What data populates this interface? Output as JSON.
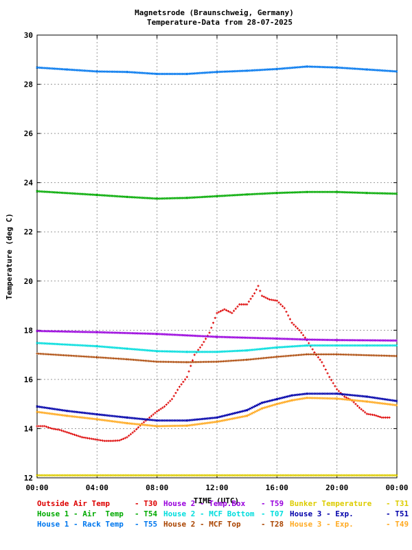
{
  "chart_data": {
    "type": "scatter",
    "title": "Magnetsrode (Braunschweig, Germany)",
    "subtitle": "Temperature-Data from 28-07-2025",
    "xlabel": "TIME (UTC)",
    "ylabel": "Temperature (deg C)",
    "xlim": [
      0,
      24
    ],
    "ylim": [
      12,
      30
    ],
    "grid": true,
    "x_ticks": [
      "00:00",
      "04:00",
      "08:00",
      "12:00",
      "16:00",
      "20:00",
      "00:00"
    ],
    "y_ticks": [
      "12",
      "14",
      "16",
      "18",
      "20",
      "22",
      "24",
      "26",
      "28",
      "30"
    ],
    "series": [
      {
        "name": "Outside Air Temp",
        "sensor": "T30",
        "color": "#dd0000",
        "marker": "plus",
        "points": [
          [
            0.0,
            14.1
          ],
          [
            0.5,
            14.1
          ],
          [
            1.0,
            14.0
          ],
          [
            1.5,
            13.95
          ],
          [
            2.0,
            13.85
          ],
          [
            2.5,
            13.75
          ],
          [
            3.0,
            13.65
          ],
          [
            3.5,
            13.6
          ],
          [
            4.0,
            13.55
          ],
          [
            4.5,
            13.5
          ],
          [
            5.0,
            13.5
          ],
          [
            5.5,
            13.52
          ],
          [
            6.0,
            13.65
          ],
          [
            6.5,
            13.9
          ],
          [
            7.0,
            14.2
          ],
          [
            7.5,
            14.45
          ],
          [
            8.0,
            14.7
          ],
          [
            8.5,
            14.9
          ],
          [
            9.0,
            15.2
          ],
          [
            9.5,
            15.7
          ],
          [
            10.0,
            16.1
          ],
          [
            10.5,
            17.0
          ],
          [
            11.0,
            17.4
          ],
          [
            11.5,
            17.9
          ],
          [
            12.0,
            18.7
          ],
          [
            12.5,
            18.85
          ],
          [
            13.0,
            18.7
          ],
          [
            13.5,
            19.05
          ],
          [
            14.0,
            19.05
          ],
          [
            14.5,
            19.5
          ],
          [
            14.75,
            19.8
          ],
          [
            15.0,
            19.4
          ],
          [
            15.5,
            19.25
          ],
          [
            16.0,
            19.2
          ],
          [
            16.5,
            18.9
          ],
          [
            17.0,
            18.3
          ],
          [
            17.5,
            18.0
          ],
          [
            18.0,
            17.6
          ],
          [
            18.5,
            17.1
          ],
          [
            19.0,
            16.7
          ],
          [
            19.5,
            16.1
          ],
          [
            20.0,
            15.6
          ],
          [
            20.5,
            15.3
          ],
          [
            21.0,
            15.15
          ],
          [
            21.5,
            14.85
          ],
          [
            22.0,
            14.6
          ],
          [
            22.5,
            14.55
          ],
          [
            23.0,
            14.45
          ],
          [
            23.5,
            14.45
          ]
        ]
      },
      {
        "name": "House 2 - Temp.Box",
        "sensor": "T59",
        "color": "#9900dd",
        "marker": "cross",
        "points": [
          [
            0,
            17.97
          ],
          [
            4,
            17.92
          ],
          [
            8,
            17.85
          ],
          [
            12,
            17.73
          ],
          [
            16,
            17.66
          ],
          [
            18,
            17.62
          ],
          [
            20,
            17.6
          ],
          [
            24,
            17.58
          ]
        ]
      },
      {
        "name": "Bunker Temperature",
        "sensor": "T31",
        "color": "#ddcc00",
        "marker": "cross",
        "points": [
          [
            0,
            12.1
          ],
          [
            12,
            12.1
          ],
          [
            24,
            12.1
          ]
        ]
      },
      {
        "name": "House 1 - Air  Temp",
        "sensor": "T54",
        "color": "#00aa00",
        "marker": "cross",
        "points": [
          [
            0,
            23.65
          ],
          [
            4,
            23.5
          ],
          [
            6,
            23.42
          ],
          [
            8,
            23.35
          ],
          [
            10,
            23.38
          ],
          [
            12,
            23.45
          ],
          [
            14,
            23.52
          ],
          [
            16,
            23.58
          ],
          [
            18,
            23.62
          ],
          [
            20,
            23.62
          ],
          [
            22,
            23.58
          ],
          [
            24,
            23.55
          ]
        ]
      },
      {
        "name": "House 2 - MCF Bottom",
        "sensor": "T07",
        "color": "#00dddd",
        "marker": "cross",
        "points": [
          [
            0,
            17.48
          ],
          [
            4,
            17.35
          ],
          [
            6,
            17.25
          ],
          [
            8,
            17.15
          ],
          [
            10,
            17.12
          ],
          [
            12,
            17.12
          ],
          [
            14,
            17.18
          ],
          [
            16,
            17.3
          ],
          [
            18,
            17.38
          ],
          [
            20,
            17.38
          ],
          [
            22,
            17.38
          ],
          [
            24,
            17.38
          ]
        ]
      },
      {
        "name": "House 3 - Exp.",
        "sensor": "T51",
        "color": "#0000aa",
        "marker": "cross",
        "points": [
          [
            0,
            14.9
          ],
          [
            2,
            14.72
          ],
          [
            4,
            14.58
          ],
          [
            6,
            14.45
          ],
          [
            8,
            14.33
          ],
          [
            10,
            14.33
          ],
          [
            12,
            14.45
          ],
          [
            14,
            14.75
          ],
          [
            15,
            15.05
          ],
          [
            16,
            15.2
          ],
          [
            17,
            15.35
          ],
          [
            18,
            15.42
          ],
          [
            20,
            15.42
          ],
          [
            22,
            15.3
          ],
          [
            24,
            15.12
          ]
        ]
      },
      {
        "name": "House 1 - Rack Temp",
        "sensor": "T55",
        "color": "#0077ee",
        "marker": "cross",
        "points": [
          [
            0,
            28.68
          ],
          [
            2,
            28.6
          ],
          [
            4,
            28.52
          ],
          [
            6,
            28.5
          ],
          [
            8,
            28.42
          ],
          [
            10,
            28.42
          ],
          [
            12,
            28.5
          ],
          [
            14,
            28.55
          ],
          [
            16,
            28.62
          ],
          [
            18,
            28.72
          ],
          [
            20,
            28.68
          ],
          [
            22,
            28.6
          ],
          [
            24,
            28.52
          ]
        ]
      },
      {
        "name": "House 2 - MCF Top",
        "sensor": "T28",
        "color": "#aa4400",
        "marker": "plus",
        "points": [
          [
            0,
            17.05
          ],
          [
            4,
            16.9
          ],
          [
            6,
            16.82
          ],
          [
            8,
            16.72
          ],
          [
            10,
            16.7
          ],
          [
            12,
            16.72
          ],
          [
            14,
            16.8
          ],
          [
            16,
            16.92
          ],
          [
            18,
            17.02
          ],
          [
            20,
            17.02
          ],
          [
            24,
            16.95
          ]
        ]
      },
      {
        "name": "House 3 - Exp.",
        "sensor": "T49",
        "color": "#ffaa22",
        "marker": "cross",
        "points": [
          [
            0,
            14.68
          ],
          [
            2,
            14.52
          ],
          [
            4,
            14.38
          ],
          [
            6,
            14.22
          ],
          [
            8,
            14.1
          ],
          [
            10,
            14.12
          ],
          [
            12,
            14.28
          ],
          [
            14,
            14.52
          ],
          [
            15,
            14.82
          ],
          [
            16,
            15.0
          ],
          [
            17,
            15.15
          ],
          [
            18,
            15.25
          ],
          [
            20,
            15.22
          ],
          [
            22,
            15.1
          ],
          [
            24,
            14.95
          ]
        ]
      }
    ]
  }
}
